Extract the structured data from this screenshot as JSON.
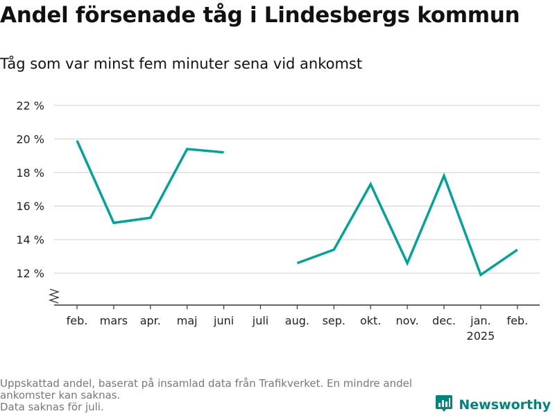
{
  "title": "Andel försenade tåg i Lindesbergs kommun",
  "subtitle": "Tåg som var minst fem minuter sena vid ankomst",
  "notes": [
    "Uppskattad andel, baserat på insamlad data från Trafikverket. En mindre andel ankomster kan saknas.",
    "Data saknas för juli."
  ],
  "brand": {
    "name": "Newsworthy",
    "icon": "bar-chart-logo-icon"
  },
  "colors": {
    "line": "#00a39a",
    "grid": "#dddddd",
    "axis": "#333333",
    "brand": "#00857c"
  },
  "chart_data": {
    "type": "line",
    "title": "Andel försenade tåg i Lindesbergs kommun",
    "subtitle": "Tåg som var minst fem minuter sena vid ankomst",
    "categories": [
      "feb.",
      "mars",
      "apr.",
      "maj",
      "juni",
      "juli",
      "aug.",
      "sep.",
      "okt.",
      "nov.",
      "dec.",
      "jan.",
      "feb."
    ],
    "category_sublabels": [
      "",
      "",
      "",
      "",
      "",
      "",
      "",
      "",
      "",
      "",
      "",
      "2025",
      ""
    ],
    "series": [
      {
        "values": [
          19.9,
          15.0,
          15.3,
          19.4,
          19.2,
          null,
          12.6,
          13.4,
          17.3,
          12.6,
          17.8,
          11.9,
          13.4
        ]
      }
    ],
    "y_ticks": [
      12,
      14,
      16,
      18,
      20,
      22
    ],
    "y_tick_labels": [
      "12 %",
      "14 %",
      "16 %",
      "18 %",
      "20 %",
      "22 %"
    ],
    "ylim": [
      10.1,
      22
    ],
    "y_axis_break": true,
    "grid": true,
    "xlabel": "",
    "ylabel": ""
  }
}
